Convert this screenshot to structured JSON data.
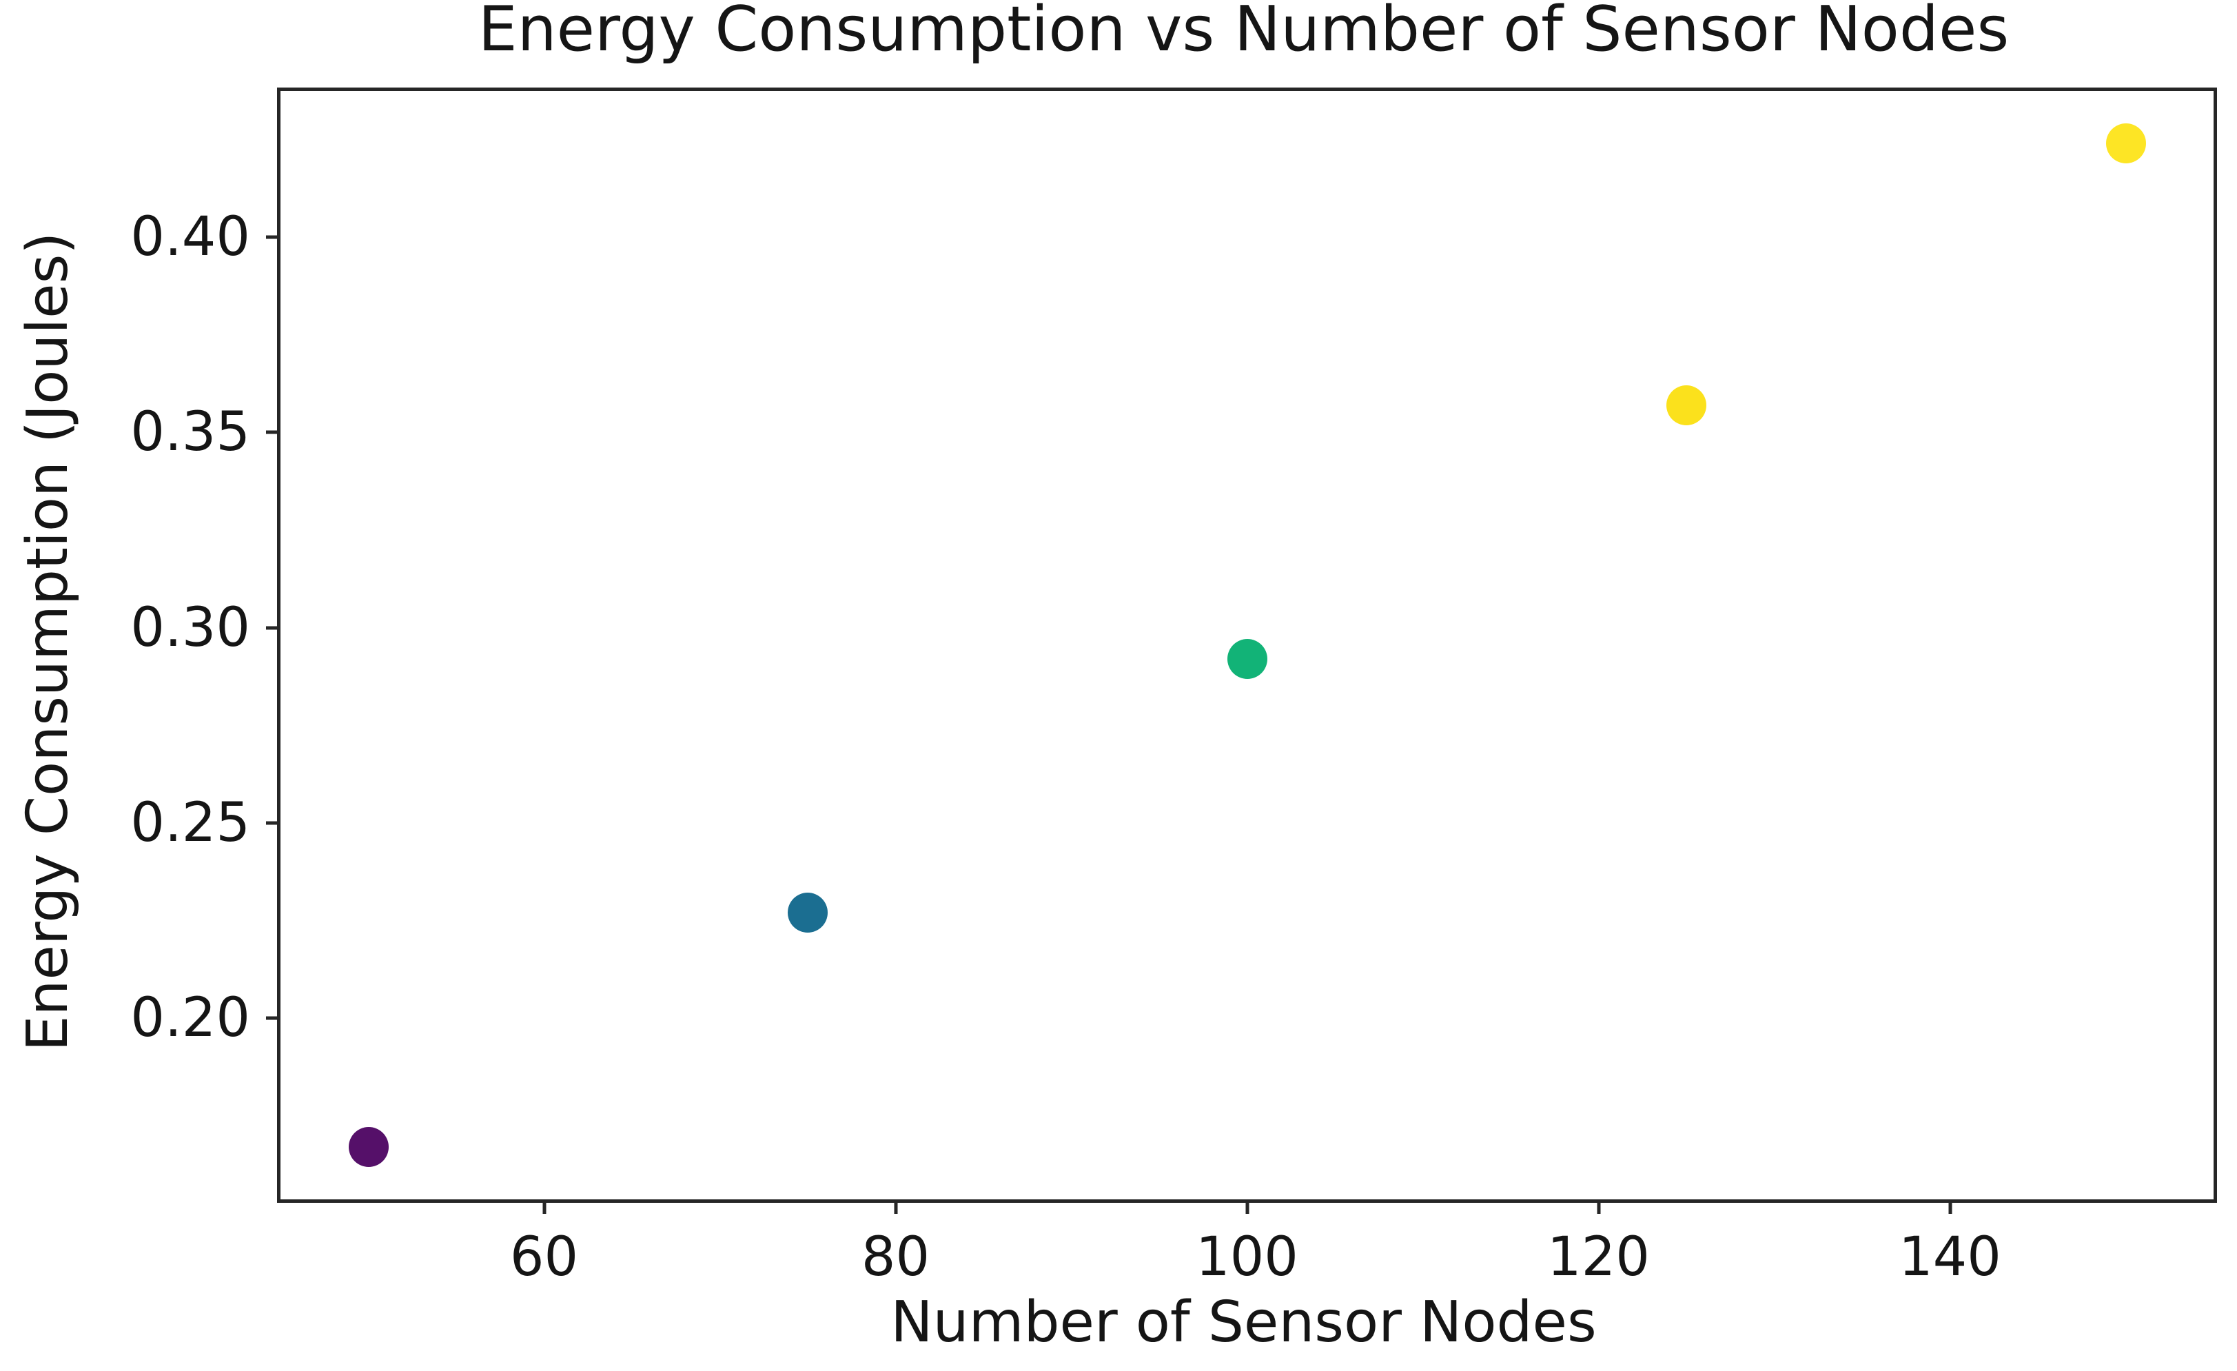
{
  "chart_data": {
    "type": "scatter",
    "title": "Energy Consumption vs Number of Sensor Nodes",
    "xlabel": "Number of Sensor Nodes",
    "ylabel": "Energy Consumption (Joules)",
    "x": [
      50,
      75,
      100,
      125,
      150
    ],
    "y": [
      0.167,
      0.227,
      0.292,
      0.357,
      0.424
    ],
    "point_colors": [
      "#551069",
      "#1b6e91",
      "#12b377",
      "#fbe11c",
      "#fde525"
    ],
    "x_ticks": [
      {
        "label": "60",
        "value": 60
      },
      {
        "label": "80",
        "value": 80
      },
      {
        "label": "100",
        "value": 100
      },
      {
        "label": "120",
        "value": 120
      },
      {
        "label": "140",
        "value": 140
      }
    ],
    "y_ticks": [
      {
        "label": "0.20",
        "value": 0.2
      },
      {
        "label": "0.25",
        "value": 0.25
      },
      {
        "label": "0.30",
        "value": 0.3
      },
      {
        "label": "0.35",
        "value": 0.35
      },
      {
        "label": "0.40",
        "value": 0.4
      }
    ],
    "xlim": [
      45,
      155
    ],
    "ylim": [
      0.1535,
      0.4375
    ],
    "grid": false,
    "legend_position": "none"
  },
  "colors": {
    "background": "#ffffff",
    "spine": "#262626",
    "text": "#151515"
  }
}
